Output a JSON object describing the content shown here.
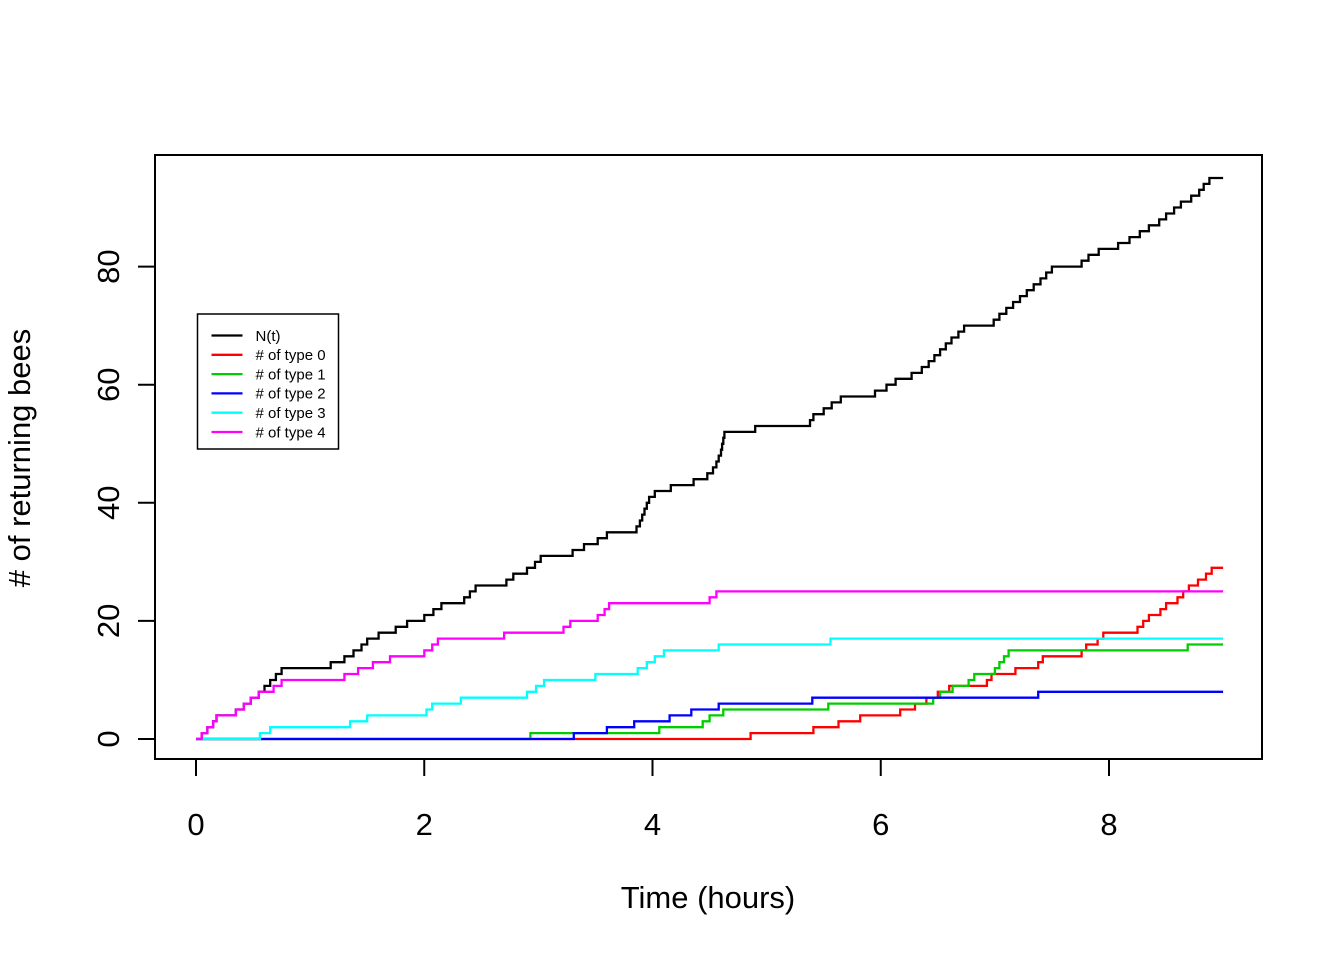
{
  "chart_data": {
    "type": "line",
    "subtype": "step",
    "title": "",
    "xlabel": "Time (hours)",
    "ylabel": "# of returning bees",
    "x_ticks": [
      0,
      2,
      4,
      6,
      8
    ],
    "y_ticks": [
      0,
      20,
      40,
      60,
      80
    ],
    "xlim": [
      -0.36,
      9.35
    ],
    "ylim": [
      -3.8,
      98.9
    ],
    "x_range_data": [
      0,
      9
    ],
    "y_range_data": [
      0,
      95
    ],
    "grid": false,
    "background": "#FFFFFF",
    "axis_color": "#000000",
    "legend": {
      "position": "upper-left-inside",
      "border": true,
      "entries": [
        "N(t)",
        "# of type 0",
        "# of type 1",
        "# of type 2",
        "# of type 3",
        "# of type 4"
      ]
    },
    "series": [
      {
        "name": "N(t)",
        "color": "#000000",
        "points": [
          [
            0,
            0
          ],
          [
            0.05,
            1
          ],
          [
            0.1,
            2
          ],
          [
            0.15,
            3
          ],
          [
            0.18,
            4
          ],
          [
            0.35,
            5
          ],
          [
            0.42,
            6
          ],
          [
            0.48,
            7
          ],
          [
            0.55,
            8
          ],
          [
            0.6,
            9
          ],
          [
            0.65,
            10
          ],
          [
            0.7,
            11
          ],
          [
            0.75,
            12
          ],
          [
            1.18,
            13
          ],
          [
            1.3,
            14
          ],
          [
            1.38,
            15
          ],
          [
            1.45,
            16
          ],
          [
            1.5,
            17
          ],
          [
            1.6,
            18
          ],
          [
            1.75,
            19
          ],
          [
            1.85,
            20
          ],
          [
            2.0,
            21
          ],
          [
            2.08,
            22
          ],
          [
            2.15,
            23
          ],
          [
            2.35,
            24
          ],
          [
            2.4,
            25
          ],
          [
            2.45,
            26
          ],
          [
            2.72,
            27
          ],
          [
            2.78,
            28
          ],
          [
            2.9,
            29
          ],
          [
            2.97,
            30
          ],
          [
            3.02,
            31
          ],
          [
            3.3,
            32
          ],
          [
            3.4,
            33
          ],
          [
            3.52,
            34
          ],
          [
            3.6,
            35
          ],
          [
            3.86,
            36
          ],
          [
            3.89,
            37
          ],
          [
            3.91,
            38
          ],
          [
            3.93,
            39
          ],
          [
            3.95,
            40
          ],
          [
            3.97,
            41
          ],
          [
            4.02,
            42
          ],
          [
            4.16,
            43
          ],
          [
            4.36,
            44
          ],
          [
            4.48,
            45
          ],
          [
            4.53,
            46
          ],
          [
            4.56,
            47
          ],
          [
            4.58,
            48
          ],
          [
            4.6,
            49
          ],
          [
            4.61,
            50
          ],
          [
            4.62,
            51
          ],
          [
            4.63,
            52
          ],
          [
            4.9,
            53
          ],
          [
            5.38,
            54
          ],
          [
            5.41,
            55
          ],
          [
            5.5,
            56
          ],
          [
            5.57,
            57
          ],
          [
            5.65,
            58
          ],
          [
            5.95,
            59
          ],
          [
            6.05,
            60
          ],
          [
            6.13,
            61
          ],
          [
            6.27,
            62
          ],
          [
            6.36,
            63
          ],
          [
            6.42,
            64
          ],
          [
            6.47,
            65
          ],
          [
            6.52,
            66
          ],
          [
            6.57,
            67
          ],
          [
            6.62,
            68
          ],
          [
            6.68,
            69
          ],
          [
            6.73,
            70
          ],
          [
            6.99,
            71
          ],
          [
            7.04,
            72
          ],
          [
            7.1,
            73
          ],
          [
            7.16,
            74
          ],
          [
            7.22,
            75
          ],
          [
            7.28,
            76
          ],
          [
            7.34,
            77
          ],
          [
            7.4,
            78
          ],
          [
            7.45,
            79
          ],
          [
            7.5,
            80
          ],
          [
            7.76,
            81
          ],
          [
            7.82,
            82
          ],
          [
            7.91,
            83
          ],
          [
            8.08,
            84
          ],
          [
            8.18,
            85
          ],
          [
            8.27,
            86
          ],
          [
            8.35,
            87
          ],
          [
            8.44,
            88
          ],
          [
            8.5,
            89
          ],
          [
            8.57,
            90
          ],
          [
            8.63,
            91
          ],
          [
            8.72,
            92
          ],
          [
            8.79,
            93
          ],
          [
            8.83,
            94
          ],
          [
            8.88,
            95
          ],
          [
            9.0,
            95
          ]
        ]
      },
      {
        "name": "# of type 0",
        "color": "#FF0000",
        "points": [
          [
            0,
            0
          ],
          [
            4.86,
            1
          ],
          [
            5.41,
            2
          ],
          [
            5.63,
            3
          ],
          [
            5.82,
            4
          ],
          [
            6.17,
            5
          ],
          [
            6.3,
            6
          ],
          [
            6.4,
            7
          ],
          [
            6.5,
            8
          ],
          [
            6.6,
            9
          ],
          [
            6.93,
            10
          ],
          [
            6.97,
            11
          ],
          [
            7.18,
            12
          ],
          [
            7.38,
            13
          ],
          [
            7.42,
            14
          ],
          [
            7.76,
            15
          ],
          [
            7.8,
            16
          ],
          [
            7.9,
            17
          ],
          [
            7.95,
            18
          ],
          [
            8.25,
            19
          ],
          [
            8.3,
            20
          ],
          [
            8.35,
            21
          ],
          [
            8.45,
            22
          ],
          [
            8.5,
            23
          ],
          [
            8.6,
            24
          ],
          [
            8.65,
            25
          ],
          [
            8.7,
            26
          ],
          [
            8.78,
            27
          ],
          [
            8.85,
            28
          ],
          [
            8.9,
            29
          ],
          [
            9.0,
            29
          ]
        ]
      },
      {
        "name": "# of type 1",
        "color": "#00CD00",
        "points": [
          [
            0,
            0
          ],
          [
            2.93,
            1
          ],
          [
            4.06,
            2
          ],
          [
            4.44,
            3
          ],
          [
            4.5,
            4
          ],
          [
            4.62,
            5
          ],
          [
            5.54,
            6
          ],
          [
            6.46,
            7
          ],
          [
            6.52,
            8
          ],
          [
            6.63,
            9
          ],
          [
            6.77,
            10
          ],
          [
            6.82,
            11
          ],
          [
            7.0,
            12
          ],
          [
            7.04,
            13
          ],
          [
            7.08,
            14
          ],
          [
            7.12,
            15
          ],
          [
            8.69,
            16
          ],
          [
            9.0,
            16
          ]
        ]
      },
      {
        "name": "# of type 2",
        "color": "#0000FF",
        "points": [
          [
            0,
            0
          ],
          [
            3.31,
            1
          ],
          [
            3.6,
            2
          ],
          [
            3.84,
            3
          ],
          [
            4.15,
            4
          ],
          [
            4.34,
            5
          ],
          [
            4.58,
            6
          ],
          [
            5.4,
            7
          ],
          [
            7.38,
            8
          ],
          [
            9.0,
            8
          ]
        ]
      },
      {
        "name": "# of type 3",
        "color": "#00FFFF",
        "points": [
          [
            0,
            0
          ],
          [
            0.56,
            1
          ],
          [
            0.65,
            2
          ],
          [
            1.35,
            3
          ],
          [
            1.5,
            4
          ],
          [
            2.02,
            5
          ],
          [
            2.07,
            6
          ],
          [
            2.32,
            7
          ],
          [
            2.9,
            8
          ],
          [
            2.98,
            9
          ],
          [
            3.05,
            10
          ],
          [
            3.5,
            11
          ],
          [
            3.87,
            12
          ],
          [
            3.95,
            13
          ],
          [
            4.02,
            14
          ],
          [
            4.1,
            15
          ],
          [
            4.58,
            16
          ],
          [
            5.56,
            17
          ],
          [
            9.0,
            17
          ]
        ]
      },
      {
        "name": "# of type 4",
        "color": "#FF00FF",
        "points": [
          [
            0,
            0
          ],
          [
            0.05,
            1
          ],
          [
            0.1,
            2
          ],
          [
            0.15,
            3
          ],
          [
            0.18,
            4
          ],
          [
            0.35,
            5
          ],
          [
            0.42,
            6
          ],
          [
            0.48,
            7
          ],
          [
            0.55,
            8
          ],
          [
            0.68,
            9
          ],
          [
            0.75,
            10
          ],
          [
            1.3,
            11
          ],
          [
            1.42,
            12
          ],
          [
            1.55,
            13
          ],
          [
            1.7,
            14
          ],
          [
            2.0,
            15
          ],
          [
            2.07,
            16
          ],
          [
            2.12,
            17
          ],
          [
            2.7,
            18
          ],
          [
            3.22,
            19
          ],
          [
            3.28,
            20
          ],
          [
            3.52,
            21
          ],
          [
            3.58,
            22
          ],
          [
            3.62,
            23
          ],
          [
            4.5,
            24
          ],
          [
            4.56,
            25
          ],
          [
            9.0,
            25
          ]
        ]
      }
    ]
  }
}
